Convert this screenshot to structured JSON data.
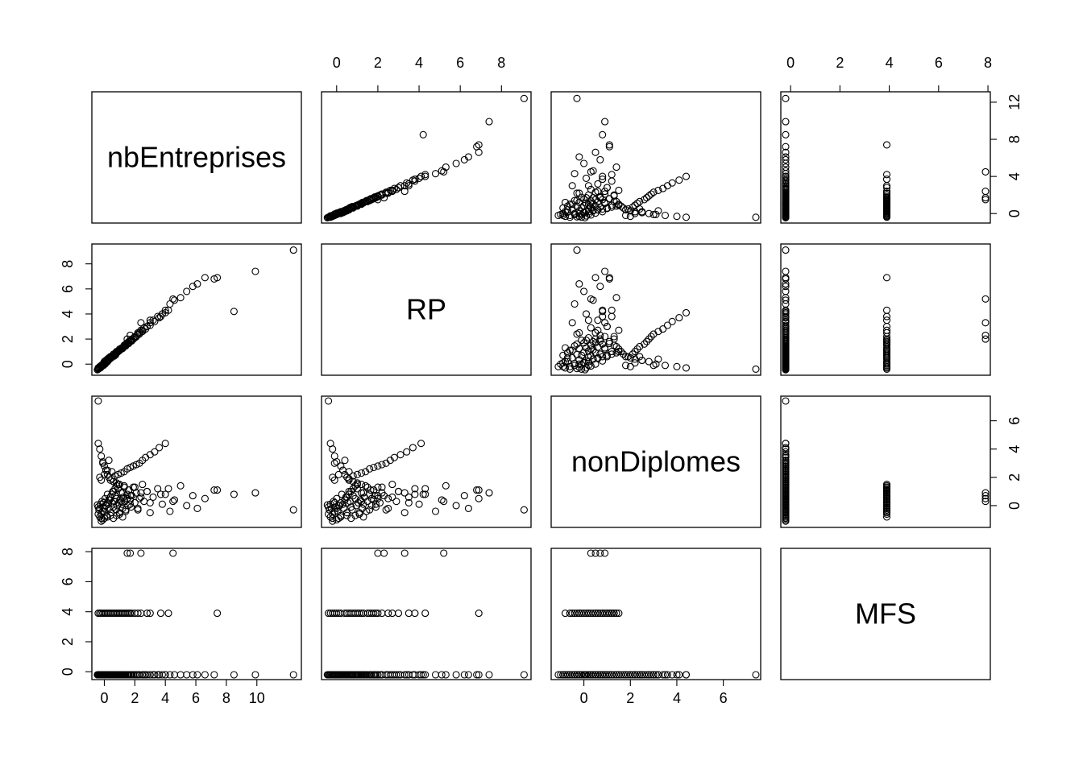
{
  "chart_data": {
    "type": "scatter",
    "variables": [
      {
        "name": "nbEntreprises",
        "range": [
          -0.5,
          12.6
        ],
        "ticks": [
          0,
          2,
          4,
          6,
          8,
          10
        ],
        "tick_labels": [
          "0",
          "2",
          "4",
          "6",
          "8",
          "10"
        ],
        "row_ticks": [
          0,
          4,
          8,
          12
        ],
        "row_tick_labels": [
          "0",
          "4",
          "8",
          "12"
        ]
      },
      {
        "name": "RP",
        "range": [
          -0.5,
          9.2
        ],
        "ticks": [
          0,
          2,
          4,
          6,
          8
        ],
        "tick_labels": [
          "0",
          "2",
          "4",
          "6",
          "8"
        ]
      },
      {
        "name": "nonDiplomes",
        "range": [
          -1.2,
          7.4
        ],
        "ticks": [
          0,
          2,
          4,
          6
        ],
        "tick_labels": [
          "0",
          "2",
          "4",
          "6"
        ]
      },
      {
        "name": "MFS",
        "range": [
          -0.2,
          7.9
        ],
        "ticks": [
          0,
          2,
          4,
          6,
          8
        ],
        "tick_labels": [
          "0",
          "2",
          "4",
          "6",
          "8"
        ]
      }
    ],
    "axes": {
      "bottom": [
        0,
        2
      ],
      "top": [
        1,
        3
      ],
      "left": [
        1,
        3
      ],
      "right": [
        0,
        2
      ]
    },
    "points": [
      [
        -0.45,
        -0.45,
        0.05,
        -0.2
      ],
      [
        -0.4,
        -0.4,
        -0.6,
        -0.2
      ],
      [
        -0.35,
        -0.35,
        -0.3,
        -0.2
      ],
      [
        -0.3,
        -0.25,
        -0.2,
        -0.2
      ],
      [
        -0.25,
        -0.3,
        0.1,
        -0.2
      ],
      [
        -0.2,
        -0.2,
        -0.9,
        -0.2
      ],
      [
        -0.15,
        -0.15,
        0.3,
        -0.2
      ],
      [
        -0.1,
        -0.05,
        -0.1,
        -0.2
      ],
      [
        -0.05,
        -0.1,
        0.2,
        -0.2
      ],
      [
        0.0,
        0.05,
        -0.4,
        -0.2
      ],
      [
        0.05,
        0.0,
        0.5,
        -0.2
      ],
      [
        0.1,
        0.15,
        0.0,
        -0.2
      ],
      [
        0.15,
        0.2,
        -0.7,
        -0.2
      ],
      [
        0.2,
        0.25,
        0.8,
        -0.2
      ],
      [
        0.25,
        0.3,
        0.1,
        -0.2
      ],
      [
        0.3,
        0.35,
        -0.2,
        -0.2
      ],
      [
        0.35,
        0.4,
        0.4,
        -0.2
      ],
      [
        0.4,
        0.45,
        0.6,
        -0.2
      ],
      [
        0.45,
        0.5,
        -0.5,
        -0.2
      ],
      [
        0.5,
        0.55,
        0.2,
        -0.2
      ],
      [
        0.55,
        0.6,
        1.0,
        -0.2
      ],
      [
        0.6,
        0.7,
        -0.1,
        -0.2
      ],
      [
        0.65,
        0.65,
        0.3,
        -0.2
      ],
      [
        0.7,
        0.8,
        0.7,
        -0.2
      ],
      [
        0.75,
        0.75,
        -0.3,
        -0.2
      ],
      [
        0.8,
        0.9,
        0.5,
        -0.2
      ],
      [
        0.85,
        0.95,
        0.0,
        -0.2
      ],
      [
        0.9,
        1.0,
        1.2,
        -0.2
      ],
      [
        0.95,
        1.05,
        0.2,
        -0.2
      ],
      [
        1.0,
        1.1,
        -0.6,
        -0.2
      ],
      [
        1.05,
        1.15,
        0.4,
        -0.2
      ],
      [
        1.1,
        1.2,
        0.9,
        -0.2
      ],
      [
        1.15,
        1.3,
        0.1,
        -0.2
      ],
      [
        1.2,
        1.25,
        -0.2,
        -0.2
      ],
      [
        1.25,
        1.35,
        0.6,
        -0.2
      ],
      [
        1.3,
        1.4,
        1.4,
        -0.2
      ],
      [
        1.35,
        1.5,
        0.3,
        -0.2
      ],
      [
        1.4,
        1.45,
        -0.4,
        -0.2
      ],
      [
        1.5,
        1.6,
        0.8,
        -0.2
      ],
      [
        1.55,
        1.7,
        0.0,
        -0.2
      ],
      [
        1.6,
        1.65,
        1.1,
        -0.2
      ],
      [
        1.7,
        1.8,
        0.4,
        -0.2
      ],
      [
        1.75,
        1.9,
        -0.1,
        -0.2
      ],
      [
        1.8,
        1.85,
        0.7,
        -0.2
      ],
      [
        1.9,
        2.0,
        1.3,
        -0.2
      ],
      [
        2.0,
        2.1,
        0.2,
        -0.2
      ],
      [
        2.1,
        2.2,
        0.9,
        -0.2
      ],
      [
        2.2,
        2.4,
        -0.3,
        -0.2
      ],
      [
        2.3,
        2.5,
        0.5,
        -0.2
      ],
      [
        2.5,
        2.7,
        1.5,
        -0.2
      ],
      [
        2.6,
        2.9,
        0.3,
        -0.2
      ],
      [
        2.8,
        3.0,
        1.0,
        -0.2
      ],
      [
        3.0,
        3.3,
        -0.5,
        -0.2
      ],
      [
        3.2,
        3.5,
        0.6,
        -0.2
      ],
      [
        3.5,
        3.8,
        1.2,
        -0.2
      ],
      [
        3.8,
        4.0,
        0.1,
        -0.2
      ],
      [
        4.0,
        4.3,
        0.8,
        -0.2
      ],
      [
        4.3,
        4.8,
        -0.4,
        -0.2
      ],
      [
        4.6,
        5.1,
        0.4,
        -0.2
      ],
      [
        5.0,
        5.3,
        1.4,
        -0.2
      ],
      [
        5.4,
        5.8,
        0.0,
        -0.2
      ],
      [
        5.8,
        6.2,
        0.7,
        -0.2
      ],
      [
        6.1,
        6.4,
        -0.2,
        -0.2
      ],
      [
        6.6,
        6.9,
        0.5,
        -0.2
      ],
      [
        7.2,
        6.8,
        1.1,
        -0.2
      ],
      [
        8.5,
        4.2,
        0.8,
        -0.2
      ],
      [
        9.9,
        7.4,
        0.9,
        -0.2
      ],
      [
        12.4,
        9.1,
        -0.3,
        -0.2
      ],
      [
        -0.4,
        -0.4,
        7.4,
        -0.2
      ],
      [
        -0.4,
        -0.3,
        4.4,
        -0.2
      ],
      [
        -0.3,
        -0.2,
        4.0,
        -0.2
      ],
      [
        -0.2,
        -0.1,
        3.5,
        -0.2
      ],
      [
        -0.1,
        0.0,
        3.1,
        -0.2
      ],
      [
        0.0,
        0.2,
        2.8,
        -0.2
      ],
      [
        0.1,
        0.3,
        2.5,
        -0.2
      ],
      [
        0.2,
        0.4,
        2.2,
        -0.2
      ],
      [
        0.3,
        0.5,
        2.0,
        -0.2
      ],
      [
        0.4,
        0.6,
        1.8,
        -0.2
      ],
      [
        0.0,
        0.1,
        2.2,
        -0.2
      ],
      [
        0.2,
        0.3,
        2.5,
        -0.2
      ],
      [
        0.6,
        0.8,
        1.7,
        -0.2
      ],
      [
        0.8,
        1.0,
        1.6,
        -0.2
      ],
      [
        1.0,
        1.2,
        1.5,
        -0.2
      ],
      [
        -0.3,
        -0.2,
        2.0,
        -0.2
      ],
      [
        -0.2,
        -0.1,
        1.8,
        -0.2
      ],
      [
        -0.1,
        -0.1,
        3.0,
        -0.2
      ],
      [
        0.5,
        0.6,
        2.4,
        -0.2
      ],
      [
        0.3,
        0.4,
        3.2,
        -0.2
      ],
      [
        -0.2,
        -0.2,
        -1.1,
        -0.2
      ],
      [
        -0.1,
        0.0,
        -1.0,
        -0.2
      ],
      [
        0.0,
        0.1,
        -0.9,
        -0.2
      ],
      [
        0.2,
        0.2,
        -0.8,
        -0.2
      ],
      [
        0.6,
        0.7,
        -0.9,
        -0.2
      ],
      [
        1.2,
        1.3,
        -0.8,
        -0.2
      ],
      [
        0.8,
        0.9,
        -0.7,
        -0.2
      ],
      [
        0.4,
        0.5,
        -0.7,
        -0.2
      ],
      [
        0.5,
        0.6,
        1.9,
        -0.2
      ],
      [
        0.7,
        0.8,
        2.1,
        -0.2
      ],
      [
        0.9,
        1.0,
        2.2,
        -0.2
      ],
      [
        1.1,
        1.2,
        2.3,
        -0.2
      ],
      [
        1.3,
        1.4,
        2.4,
        -0.2
      ],
      [
        1.5,
        1.6,
        2.6,
        -0.2
      ],
      [
        1.7,
        1.8,
        2.7,
        -0.2
      ],
      [
        1.9,
        2.0,
        2.8,
        -0.2
      ],
      [
        2.1,
        2.2,
        2.9,
        -0.2
      ],
      [
        2.3,
        2.4,
        3.0,
        -0.2
      ],
      [
        2.5,
        2.6,
        3.2,
        -0.2
      ],
      [
        2.7,
        2.8,
        3.4,
        -0.2
      ],
      [
        3.0,
        3.1,
        3.6,
        -0.2
      ],
      [
        3.3,
        3.4,
        3.8,
        -0.2
      ],
      [
        3.6,
        3.7,
        4.1,
        -0.2
      ],
      [
        4.0,
        4.1,
        4.4,
        -0.2
      ],
      [
        -0.4,
        -0.4,
        -0.1,
        3.9
      ],
      [
        -0.3,
        -0.3,
        -0.8,
        3.9
      ],
      [
        -0.2,
        -0.2,
        -0.6,
        3.9
      ],
      [
        -0.1,
        -0.1,
        -0.4,
        3.9
      ],
      [
        0.0,
        0.0,
        -0.2,
        3.9
      ],
      [
        0.1,
        0.1,
        0.0,
        3.9
      ],
      [
        0.2,
        0.2,
        0.2,
        3.9
      ],
      [
        0.3,
        0.4,
        0.4,
        3.9
      ],
      [
        0.4,
        0.5,
        0.6,
        3.9
      ],
      [
        0.5,
        0.6,
        0.8,
        3.9
      ],
      [
        0.6,
        0.7,
        1.0,
        3.9
      ],
      [
        0.7,
        0.8,
        1.2,
        3.9
      ],
      [
        0.8,
        0.9,
        1.4,
        3.9
      ],
      [
        0.9,
        1.0,
        1.5,
        3.9
      ],
      [
        1.0,
        1.1,
        -0.5,
        3.9
      ],
      [
        1.1,
        1.2,
        0.3,
        3.9
      ],
      [
        1.2,
        1.3,
        0.9,
        3.9
      ],
      [
        1.3,
        1.5,
        1.3,
        3.9
      ],
      [
        1.4,
        1.6,
        -0.3,
        3.9
      ],
      [
        1.5,
        1.7,
        0.5,
        3.9
      ],
      [
        1.6,
        1.8,
        1.1,
        3.9
      ],
      [
        1.7,
        1.9,
        0.1,
        3.9
      ],
      [
        1.8,
        2.0,
        0.7,
        3.9
      ],
      [
        2.0,
        2.2,
        1.3,
        3.9
      ],
      [
        2.2,
        2.5,
        -0.2,
        3.9
      ],
      [
        2.4,
        2.7,
        0.6,
        3.9
      ],
      [
        2.8,
        3.0,
        1.0,
        3.9
      ],
      [
        3.0,
        3.5,
        0.2,
        3.9
      ],
      [
        3.7,
        3.8,
        0.8,
        3.9
      ],
      [
        4.2,
        4.3,
        1.2,
        3.9
      ],
      [
        7.4,
        6.9,
        1.1,
        3.9
      ],
      [
        1.5,
        2.0,
        0.5,
        7.9
      ],
      [
        1.7,
        2.3,
        0.7,
        7.9
      ],
      [
        2.4,
        3.3,
        0.9,
        7.9
      ],
      [
        4.5,
        5.2,
        0.3,
        7.9
      ]
    ]
  }
}
